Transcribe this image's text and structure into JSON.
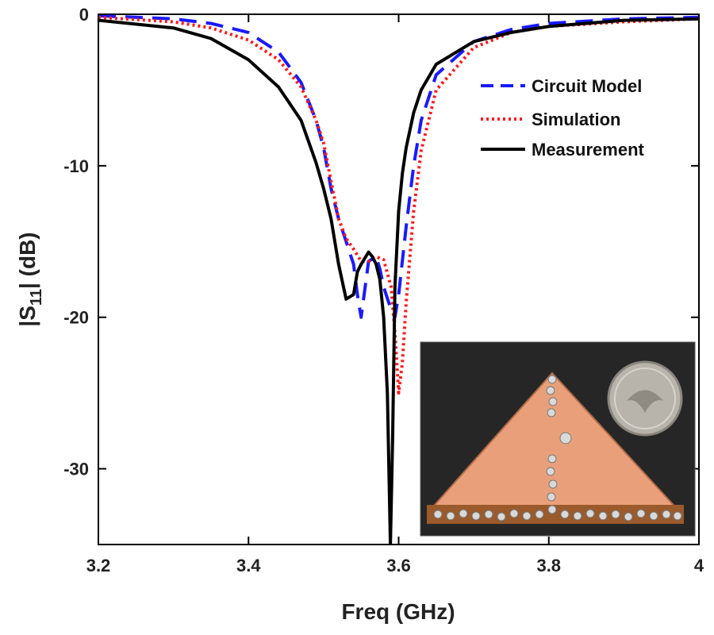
{
  "chart_data": {
    "type": "line",
    "title": "",
    "xlabel": "Freq (GHz)",
    "ylabel_main": "|S",
    "ylabel_sub": "11",
    "ylabel_tail": "| (dB)",
    "xlim": [
      3.2,
      4.0
    ],
    "ylim": [
      -35,
      0
    ],
    "xticks": [
      3.2,
      3.4,
      3.6,
      3.8,
      4.0
    ],
    "xtick_labels": [
      "3.2",
      "3.4",
      "3.6",
      "3.8",
      "4"
    ],
    "yticks": [
      0,
      -10,
      -20,
      -30
    ],
    "ytick_labels": [
      "0",
      "-10",
      "-20",
      "-30"
    ],
    "grid": false,
    "legend_position": "top-right",
    "series": [
      {
        "name": "Circuit Model",
        "color": "#1a1aff",
        "style": "dashed",
        "x": [
          3.2,
          3.3,
          3.35,
          3.4,
          3.44,
          3.47,
          3.49,
          3.5,
          3.51,
          3.52,
          3.53,
          3.54,
          3.545,
          3.55,
          3.56,
          3.57,
          3.575,
          3.58,
          3.59,
          3.595,
          3.6,
          3.61,
          3.62,
          3.63,
          3.65,
          3.7,
          3.75,
          3.8,
          3.9,
          4.0
        ],
        "y": [
          -0.1,
          -0.3,
          -0.6,
          -1.2,
          -2.5,
          -4.5,
          -7.0,
          -8.8,
          -11.5,
          -13.5,
          -15.0,
          -16.5,
          -18.5,
          -20.0,
          -16.3,
          -16.0,
          -16.8,
          -18.0,
          -19.5,
          -20.0,
          -18.5,
          -14.0,
          -10.0,
          -7.0,
          -4.0,
          -1.8,
          -1.0,
          -0.6,
          -0.3,
          -0.2
        ]
      },
      {
        "name": "Simulation",
        "color": "#ff1a1a",
        "style": "dotted",
        "x": [
          3.2,
          3.3,
          3.35,
          3.4,
          3.44,
          3.47,
          3.49,
          3.5,
          3.51,
          3.52,
          3.53,
          3.54,
          3.55,
          3.56,
          3.57,
          3.58,
          3.59,
          3.595,
          3.6,
          3.605,
          3.61,
          3.62,
          3.63,
          3.65,
          3.7,
          3.75,
          3.8,
          3.9,
          4.0
        ],
        "y": [
          -0.2,
          -0.5,
          -0.9,
          -1.7,
          -3.0,
          -4.8,
          -7.0,
          -8.5,
          -11.0,
          -13.5,
          -14.8,
          -15.5,
          -16.3,
          -16.3,
          -16.0,
          -16.2,
          -18.0,
          -21.0,
          -25.0,
          -23.0,
          -19.0,
          -13.0,
          -9.0,
          -5.0,
          -2.2,
          -1.2,
          -0.8,
          -0.5,
          -0.3
        ]
      },
      {
        "name": "Measurement",
        "color": "#000000",
        "style": "solid",
        "x": [
          3.2,
          3.3,
          3.35,
          3.4,
          3.44,
          3.47,
          3.49,
          3.5,
          3.51,
          3.52,
          3.53,
          3.54,
          3.545,
          3.55,
          3.56,
          3.565,
          3.57,
          3.575,
          3.58,
          3.585,
          3.589,
          3.592,
          3.595,
          3.6,
          3.605,
          3.61,
          3.62,
          3.63,
          3.65,
          3.7,
          3.75,
          3.8,
          3.9,
          4.0
        ],
        "y": [
          -0.4,
          -0.9,
          -1.6,
          -3.0,
          -4.8,
          -7.0,
          -9.8,
          -11.5,
          -13.5,
          -16.5,
          -18.8,
          -18.5,
          -17.0,
          -16.5,
          -15.7,
          -16.0,
          -16.5,
          -17.5,
          -20.0,
          -25.0,
          -35.0,
          -28.0,
          -18.0,
          -13.0,
          -10.5,
          -8.8,
          -6.5,
          -5.0,
          -3.3,
          -1.8,
          -1.2,
          -0.8,
          -0.4,
          -0.3
        ]
      }
    ]
  },
  "inset": {
    "description_icon": "antenna-photo-icon",
    "board_color": "#e9a07a",
    "background_color": "#262626",
    "coin_color": "#b8b4ac"
  }
}
